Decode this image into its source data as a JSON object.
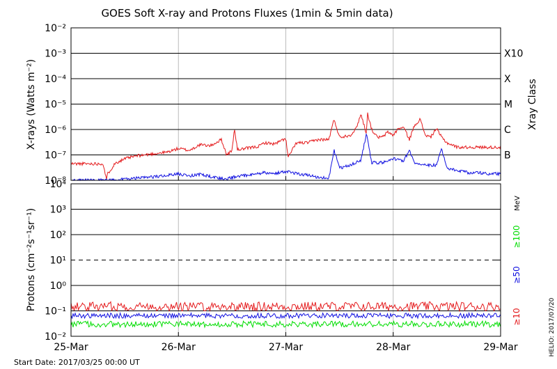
{
  "chart_data": [
    {
      "type": "line",
      "title": "GOES Soft X-ray and Protons Fluxes   (1min & 5min data)",
      "ylabel": "X-rays (Watts m⁻²)",
      "yscale": "log",
      "ylim": [
        1e-08,
        0.01
      ],
      "y_tick_exponents": [
        -2,
        -3,
        -4,
        -5,
        -6,
        -7,
        -8
      ],
      "xlim": [
        "2017-03-25 00:00",
        "2017-03-29 00:00"
      ],
      "x_ticks": [
        "25-Mar",
        "26-Mar",
        "27-Mar",
        "28-Mar",
        "29-Mar"
      ],
      "right_axis": {
        "title": "Xray Class",
        "labels": [
          {
            "label": "X10",
            "flux": 0.001
          },
          {
            "label": "X",
            "flux": 0.0001
          },
          {
            "label": "M",
            "flux": 1e-05
          },
          {
            "label": "C",
            "flux": 1e-06
          },
          {
            "label": "B",
            "flux": 1e-07
          }
        ]
      },
      "grid": true,
      "series": [
        {
          "color": "#e41a1c",
          "x_days": [
            0,
            0.3,
            0.33,
            0.34,
            0.4,
            0.42,
            0.5,
            0.6,
            0.9,
            1.0,
            1.1,
            1.2,
            1.3,
            1.4,
            1.45,
            1.5,
            1.52,
            1.55,
            1.7,
            1.75,
            1.8,
            1.9,
            2.0,
            2.02,
            2.1,
            2.2,
            2.3,
            2.4,
            2.45,
            2.5,
            2.6,
            2.65,
            2.7,
            2.75,
            2.76,
            2.8,
            2.85,
            2.9,
            2.95,
            3.0,
            3.05,
            3.1,
            3.15,
            3.2,
            3.25,
            3.3,
            3.35,
            3.4,
            3.45,
            3.5,
            3.6,
            3.7,
            3.8,
            3.9,
            4.0
          ],
          "flux": [
            4.5e-08,
            4.5e-08,
            1e-08,
            1.8e-08,
            4e-08,
            5e-08,
            7e-08,
            9e-08,
            1.3e-07,
            1.8e-07,
            1.5e-07,
            2.5e-07,
            2.3e-07,
            4e-07,
            1e-07,
            1.5e-07,
            1.1e-06,
            1.6e-07,
            2e-07,
            2.2e-07,
            3e-07,
            2.7e-07,
            4.5e-07,
            8e-08,
            3e-07,
            3e-07,
            4e-07,
            4e-07,
            2.5e-06,
            5e-07,
            6e-07,
            1e-06,
            4e-06,
            7e-07,
            4.5e-06,
            1e-06,
            5e-07,
            5e-07,
            8e-07,
            6e-07,
            1.1e-06,
            1.2e-06,
            4e-07,
            1.5e-06,
            2.5e-06,
            6e-07,
            5e-07,
            1.1e-06,
            5e-07,
            3e-07,
            2e-07,
            2e-07,
            2e-07,
            2e-07,
            2e-07
          ]
        },
        {
          "color": "#1010e0",
          "x_days": [
            0,
            0.3,
            0.4,
            0.5,
            0.6,
            0.8,
            0.9,
            1.0,
            1.1,
            1.2,
            1.3,
            1.4,
            1.45,
            1.5,
            1.6,
            1.7,
            1.8,
            1.9,
            2.0,
            2.1,
            2.2,
            2.3,
            2.4,
            2.45,
            2.5,
            2.6,
            2.7,
            2.75,
            2.8,
            2.9,
            3.0,
            3.1,
            3.15,
            3.2,
            3.3,
            3.4,
            3.45,
            3.5,
            3.6,
            3.7,
            3.8,
            3.9,
            4.0
          ],
          "flux": [
            1e-08,
            1e-08,
            1e-08,
            1.1e-08,
            1.2e-08,
            1.4e-08,
            1.6e-08,
            1.8e-08,
            1.5e-08,
            1.7e-08,
            1.4e-08,
            1.2e-08,
            1.1e-08,
            1.3e-08,
            1.5e-08,
            1.7e-08,
            2e-08,
            1.9e-08,
            2.2e-08,
            1.8e-08,
            1.6e-08,
            1.3e-08,
            1.2e-08,
            1.5e-07,
            3e-08,
            4e-08,
            6e-08,
            7e-07,
            5e-08,
            5e-08,
            7e-08,
            6e-08,
            1.5e-07,
            5e-08,
            4e-08,
            4e-08,
            1.7e-07,
            3e-08,
            2.5e-08,
            2e-08,
            2e-08,
            1.8e-08,
            1.8e-08
          ]
        }
      ]
    },
    {
      "type": "line",
      "ylabel": "Protons (cm⁻²s⁻¹sr⁻¹)",
      "yscale": "log",
      "ylim": [
        0.01,
        10000
      ],
      "y_tick_labels": [
        "10⁴",
        "10³",
        "10²",
        "10¹",
        "10⁰",
        "10⁻¹",
        "10⁻²"
      ],
      "xlim": [
        "2017-03-25 00:00",
        "2017-03-29 00:00"
      ],
      "x_ticks": [
        "25-Mar",
        "26-Mar",
        "27-Mar",
        "28-Mar",
        "29-Mar"
      ],
      "threshold": 10,
      "unit_label": "MeV",
      "grid": true,
      "series": [
        {
          "name": "≥10",
          "color": "#e41a1c",
          "mean": 0.15,
          "spread_decades": 0.18
        },
        {
          "name": "≥50",
          "color": "#1010e0",
          "mean": 0.065,
          "spread_decades": 0.1
        },
        {
          "name": "≥100",
          "color": "#00dd00",
          "mean": 0.03,
          "spread_decades": 0.12
        }
      ]
    }
  ],
  "footer": {
    "start_date": "Start Date: 2017/03/25 00:00 UT",
    "credit": "HELIO: 2017/07/20"
  },
  "labels": {
    "ten": "10",
    "xray_class": "Xray Class",
    "mev": "MeV"
  }
}
